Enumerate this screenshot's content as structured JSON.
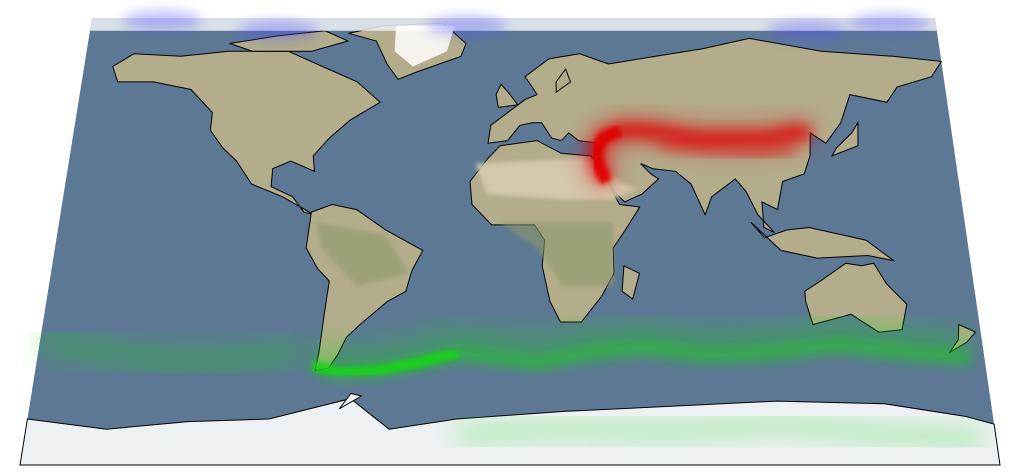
{
  "map": {
    "colors": {
      "ocean": "#5d7895",
      "land": "#b3ad8c",
      "land_green": "#8c9a6a",
      "desert": "#d8cbb0",
      "ice": "#eef1f4",
      "coastline": "#000000",
      "north_plume": "#e00000",
      "south_plume": "#19d419",
      "polar_tint": "#5050ff"
    },
    "layers": [
      "ocean",
      "land",
      "ice",
      "coastlines",
      "red-plume",
      "green-plume",
      "blue-polar-tint"
    ]
  }
}
